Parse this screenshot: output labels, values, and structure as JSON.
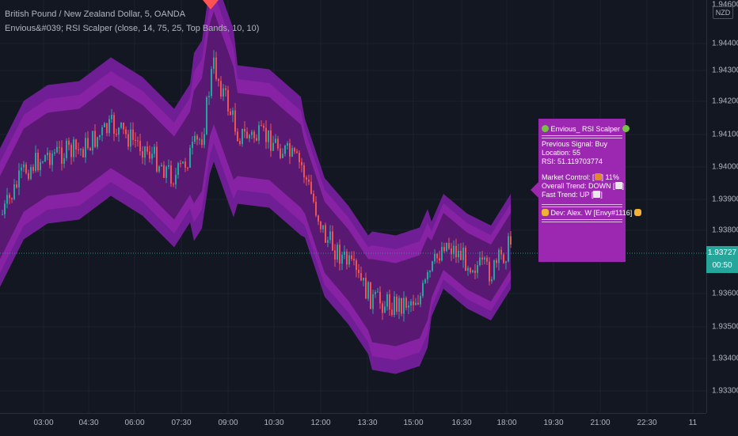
{
  "header": {
    "symbol_line": "British Pound / New Zealand Dollar, 5, OANDA",
    "indicator_line": "Envious&#039; RSI Scalper (close, 14, 75, 25, Top Bands, 10, 10)"
  },
  "price_axis": {
    "currency": "NZD",
    "labels": [
      "1.94600",
      "1.94400",
      "1.94300",
      "1.94200",
      "1.94100",
      "1.94000",
      "1.93900",
      "1.93800",
      "1.93600",
      "1.93500",
      "1.93400",
      "1.93300"
    ],
    "last_price": "1.93727",
    "countdown": "00:50"
  },
  "time_axis": {
    "labels": [
      "03:00",
      "04:30",
      "06:00",
      "07:30",
      "09:00",
      "10:30",
      "12:00",
      "13:30",
      "15:00",
      "16:30",
      "18:00",
      "19:30",
      "21:00",
      "22:30",
      "11"
    ]
  },
  "info_panel": {
    "title": "Envious_ RSI Scalper",
    "previous_signal": "Previous Signal: Buy",
    "location": "Location: 55",
    "rsi": "RSI: 51.119703774",
    "market_control_label": "Market Control: [",
    "market_control_value": "] 11%",
    "overall_trend_label": "Overall Trend: DOWN [",
    "overall_trend_end": "]",
    "fast_trend_label": "Fast Trend: UP [",
    "fast_trend_end": "]",
    "dev": "Dev: Alex. W [Envy#1116]"
  },
  "colors": {
    "background": "#131722",
    "bull": "#26a69a",
    "bear": "#ef5350",
    "band_outer": "#7b1fa2",
    "band_inner": "#9c27b0",
    "panel": "#9c27b0"
  }
}
